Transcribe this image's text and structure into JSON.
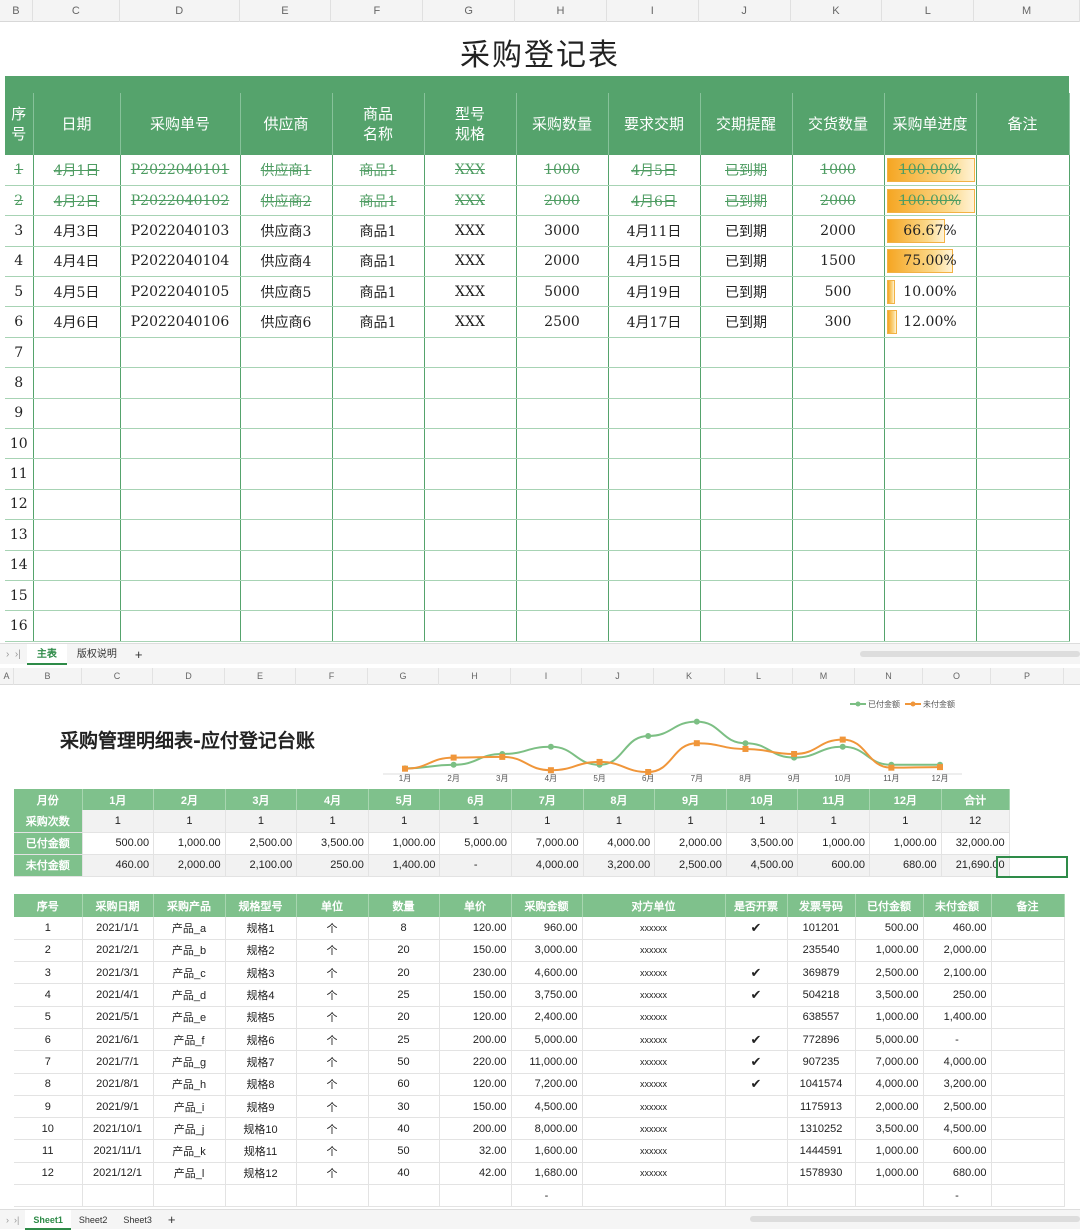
{
  "sheet1": {
    "columns": [
      "B",
      "C",
      "D",
      "E",
      "F",
      "G",
      "H",
      "I",
      "J",
      "K",
      "L",
      "M"
    ],
    "title": "采购登记表",
    "headers": [
      "序\n号",
      "日期",
      "采购单号",
      "供应商",
      "商品\n名称",
      "型号\n规格",
      "采购数量",
      "要求交期",
      "交期提醒",
      "交货数量",
      "采购单进度",
      "备注"
    ],
    "rows": [
      {
        "no": "1",
        "date": "4月1日",
        "order": "P2022040101",
        "supplier": "供应商1",
        "item": "商品1",
        "spec": "XXX",
        "qty": "1000",
        "due": "4月5日",
        "remind": "已到期",
        "delivered": "1000",
        "progress": "100.00%",
        "pct": 1.0,
        "done": true
      },
      {
        "no": "2",
        "date": "4月2日",
        "order": "P2022040102",
        "supplier": "供应商2",
        "item": "商品1",
        "spec": "XXX",
        "qty": "2000",
        "due": "4月6日",
        "remind": "已到期",
        "delivered": "2000",
        "progress": "100.00%",
        "pct": 1.0,
        "done": true
      },
      {
        "no": "3",
        "date": "4月3日",
        "order": "P2022040103",
        "supplier": "供应商3",
        "item": "商品1",
        "spec": "XXX",
        "qty": "3000",
        "due": "4月11日",
        "remind": "已到期",
        "delivered": "2000",
        "progress": "66.67%",
        "pct": 0.6667,
        "done": false
      },
      {
        "no": "4",
        "date": "4月4日",
        "order": "P2022040104",
        "supplier": "供应商4",
        "item": "商品1",
        "spec": "XXX",
        "qty": "2000",
        "due": "4月15日",
        "remind": "已到期",
        "delivered": "1500",
        "progress": "75.00%",
        "pct": 0.75,
        "done": false
      },
      {
        "no": "5",
        "date": "4月5日",
        "order": "P2022040105",
        "supplier": "供应商5",
        "item": "商品1",
        "spec": "XXX",
        "qty": "5000",
        "due": "4月19日",
        "remind": "已到期",
        "delivered": "500",
        "progress": "10.00%",
        "pct": 0.1,
        "done": false
      },
      {
        "no": "6",
        "date": "4月6日",
        "order": "P2022040106",
        "supplier": "供应商6",
        "item": "商品1",
        "spec": "XXX",
        "qty": "2500",
        "due": "4月17日",
        "remind": "已到期",
        "delivered": "300",
        "progress": "12.00%",
        "pct": 0.12,
        "done": false
      }
    ],
    "empty_rows": [
      "7",
      "8",
      "9",
      "10",
      "11",
      "12",
      "13",
      "14",
      "15",
      "16"
    ],
    "tabs": [
      "主表",
      "版权说明"
    ],
    "active_tab": "主表"
  },
  "sheet2": {
    "columns": [
      "A",
      "B",
      "C",
      "D",
      "E",
      "F",
      "G",
      "H",
      "I",
      "J",
      "K",
      "L",
      "M",
      "N",
      "O",
      "P"
    ],
    "title": "采购管理明细表-应付登记台账",
    "summary_headers": [
      "月份",
      "1月",
      "2月",
      "3月",
      "4月",
      "5月",
      "6月",
      "7月",
      "8月",
      "9月",
      "10月",
      "11月",
      "12月",
      "合计"
    ],
    "summary_rows": [
      {
        "label": "采购次数",
        "values": [
          "1",
          "1",
          "1",
          "1",
          "1",
          "1",
          "1",
          "1",
          "1",
          "1",
          "1",
          "1",
          "12"
        ],
        "center": true
      },
      {
        "label": "已付金额",
        "values": [
          "500.00",
          "1,000.00",
          "2,500.00",
          "3,500.00",
          "1,000.00",
          "5,000.00",
          "7,000.00",
          "4,000.00",
          "2,000.00",
          "3,500.00",
          "1,000.00",
          "1,000.00",
          "32,000.00"
        ]
      },
      {
        "label": "未付金额",
        "values": [
          "460.00",
          "2,000.00",
          "2,100.00",
          "250.00",
          "1,400.00",
          "-",
          "4,000.00",
          "3,200.00",
          "2,500.00",
          "4,500.00",
          "600.00",
          "680.00",
          "21,690.00"
        ]
      }
    ],
    "detail_headers": [
      "序号",
      "采购日期",
      "采购产品",
      "规格型号",
      "单位",
      "数量",
      "单价",
      "采购金额",
      "对方单位",
      "是否开票",
      "发票号码",
      "已付金额",
      "未付金额",
      "备注"
    ],
    "detail_rows": [
      [
        "1",
        "2021/1/1",
        "产品_a",
        "规格1",
        "个",
        "8",
        "120.00",
        "960.00",
        "xxxxxx",
        "✔",
        "101201",
        "500.00",
        "460.00",
        ""
      ],
      [
        "2",
        "2021/2/1",
        "产品_b",
        "规格2",
        "个",
        "20",
        "150.00",
        "3,000.00",
        "xxxxxx",
        "",
        "235540",
        "1,000.00",
        "2,000.00",
        ""
      ],
      [
        "3",
        "2021/3/1",
        "产品_c",
        "规格3",
        "个",
        "20",
        "230.00",
        "4,600.00",
        "xxxxxx",
        "✔",
        "369879",
        "2,500.00",
        "2,100.00",
        ""
      ],
      [
        "4",
        "2021/4/1",
        "产品_d",
        "规格4",
        "个",
        "25",
        "150.00",
        "3,750.00",
        "xxxxxx",
        "✔",
        "504218",
        "3,500.00",
        "250.00",
        ""
      ],
      [
        "5",
        "2021/5/1",
        "产品_e",
        "规格5",
        "个",
        "20",
        "120.00",
        "2,400.00",
        "xxxxxx",
        "",
        "638557",
        "1,000.00",
        "1,400.00",
        ""
      ],
      [
        "6",
        "2021/6/1",
        "产品_f",
        "规格6",
        "个",
        "25",
        "200.00",
        "5,000.00",
        "xxxxxx",
        "✔",
        "772896",
        "5,000.00",
        "-",
        ""
      ],
      [
        "7",
        "2021/7/1",
        "产品_g",
        "规格7",
        "个",
        "50",
        "220.00",
        "11,000.00",
        "xxxxxx",
        "✔",
        "907235",
        "7,000.00",
        "4,000.00",
        ""
      ],
      [
        "8",
        "2021/8/1",
        "产品_h",
        "规格8",
        "个",
        "60",
        "120.00",
        "7,200.00",
        "xxxxxx",
        "✔",
        "1041574",
        "4,000.00",
        "3,200.00",
        ""
      ],
      [
        "9",
        "2021/9/1",
        "产品_i",
        "规格9",
        "个",
        "30",
        "150.00",
        "4,500.00",
        "xxxxxx",
        "",
        "1175913",
        "2,000.00",
        "2,500.00",
        ""
      ],
      [
        "10",
        "2021/10/1",
        "产品_j",
        "规格10",
        "个",
        "40",
        "200.00",
        "8,000.00",
        "xxxxxx",
        "",
        "1310252",
        "3,500.00",
        "4,500.00",
        ""
      ],
      [
        "11",
        "2021/11/1",
        "产品_k",
        "规格11",
        "个",
        "50",
        "32.00",
        "1,600.00",
        "xxxxxx",
        "",
        "1444591",
        "1,000.00",
        "600.00",
        ""
      ],
      [
        "12",
        "2021/12/1",
        "产品_l",
        "规格12",
        "个",
        "40",
        "42.00",
        "1,680.00",
        "xxxxxx",
        "",
        "1578930",
        "1,000.00",
        "680.00",
        ""
      ],
      [
        "",
        "",
        "",
        "",
        "",
        "",
        "",
        "-",
        "",
        "",
        "",
        "",
        "-",
        ""
      ]
    ],
    "tabs": [
      "Sheet1",
      "Sheet2",
      "Sheet3"
    ],
    "active_tab": "Sheet1"
  },
  "chart_data": {
    "type": "line",
    "categories": [
      "1月",
      "2月",
      "3月",
      "4月",
      "5月",
      "6月",
      "7月",
      "8月",
      "9月",
      "10月",
      "11月",
      "12月"
    ],
    "series": [
      {
        "name": "已付金额",
        "color": "#7cbf84",
        "values": [
          500,
          1000,
          2500,
          3500,
          1000,
          5000,
          7000,
          4000,
          2000,
          3500,
          1000,
          1000
        ]
      },
      {
        "name": "未付金额",
        "color": "#f0963a",
        "values": [
          460,
          2000,
          2100,
          250,
          1400,
          0,
          4000,
          3200,
          2500,
          4500,
          600,
          680
        ]
      }
    ],
    "ylim": [
      0,
      7500
    ],
    "legend": "top-right",
    "grid": false
  }
}
